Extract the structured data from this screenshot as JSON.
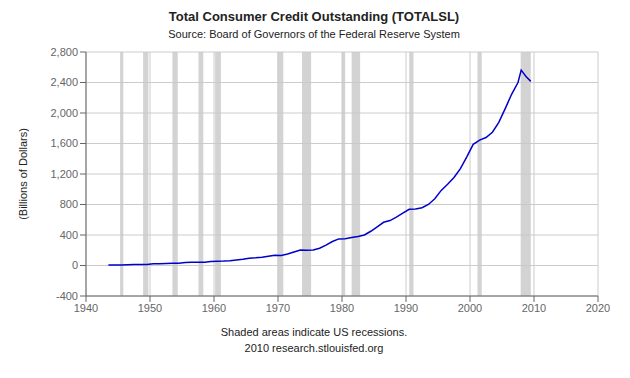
{
  "chart_data": {
    "type": "line",
    "title": "Total Consumer Credit Outstanding (TOTALSL)",
    "subtitle": "Source: Board of Governors of the Federal Reserve System",
    "y_label": "(Billions of Dollars)",
    "annotations": [
      "Shaded areas indicate US recessions.",
      "2010 research.stlouisfed.org"
    ],
    "x": [
      1943.5,
      1944.5,
      1945.5,
      1946.5,
      1947.5,
      1948.5,
      1949.5,
      1950.5,
      1951.5,
      1952.5,
      1953.5,
      1954.5,
      1955.5,
      1956.5,
      1957.5,
      1958.5,
      1959.5,
      1960.5,
      1961.5,
      1962.5,
      1963.5,
      1964.5,
      1965.5,
      1966.5,
      1967.5,
      1968.5,
      1969.5,
      1970.5,
      1971.5,
      1972.5,
      1973.5,
      1974.5,
      1975.5,
      1976.5,
      1977.5,
      1978.5,
      1979.5,
      1980.5,
      1981.5,
      1982.5,
      1983.5,
      1984.5,
      1985.5,
      1986.5,
      1987.5,
      1988.5,
      1989.5,
      1990.5,
      1991.5,
      1992.5,
      1993.5,
      1994.5,
      1995.5,
      1996.5,
      1997.5,
      1998.5,
      1999.5,
      2000.5,
      2001.5,
      2002.5,
      2003.5,
      2004.5,
      2005.5,
      2006.5,
      2007.5,
      2008.0,
      2008.75,
      2009.5
    ],
    "values": [
      5.6,
      5.0,
      5.7,
      8.4,
      11.6,
      14.3,
      13.9,
      21.5,
      22.5,
      27.5,
      31.0,
      29.5,
      38.8,
      42.0,
      44.0,
      42.0,
      51.5,
      56.0,
      57.5,
      63.0,
      73.0,
      83.0,
      96.5,
      101.0,
      107.5,
      122.0,
      135.5,
      131.5,
      150.0,
      176.0,
      202.0,
      199.0,
      204.0,
      226.0,
      267.0,
      315.0,
      349.0,
      350.0,
      366.0,
      381.0,
      400.0,
      449.0,
      507.0,
      567.0,
      589.0,
      634.0,
      686.0,
      737.0,
      741.0,
      757.0,
      800.0,
      875.0,
      985.0,
      1066.0,
      1154.0,
      1270.0,
      1425.0,
      1589.0,
      1644.0,
      1678.0,
      1748.0,
      1878.0,
      2057.0,
      2245.0,
      2400.0,
      2562.0,
      2480.0,
      2415.0
    ],
    "color": "#0000cc",
    "recessions": {
      "color": "#c8c8c8",
      "ranges": [
        [
          1945.33,
          1945.83
        ],
        [
          1948.92,
          1949.75
        ],
        [
          1953.5,
          1954.33
        ],
        [
          1957.58,
          1958.33
        ],
        [
          1960.17,
          1961.08
        ],
        [
          1969.92,
          1970.83
        ],
        [
          1973.75,
          1975.17
        ],
        [
          1980.0,
          1980.5
        ],
        [
          1981.5,
          1982.83
        ],
        [
          1990.5,
          1991.17
        ],
        [
          2001.17,
          2001.83
        ],
        [
          2007.92,
          2009.5
        ]
      ]
    },
    "xlim": [
      1940,
      2020
    ],
    "xticks": [
      1940,
      1950,
      1960,
      1970,
      1980,
      1990,
      2000,
      2010,
      2020
    ],
    "ylim": [
      -400,
      2800
    ],
    "yticks": [
      -400,
      0,
      400,
      800,
      {
        "value": 1200,
        "label": "1,200"
      },
      {
        "value": 1600,
        "label": "1,600"
      },
      {
        "value": 2000,
        "label": "2,000"
      },
      {
        "value": 2400,
        "label": "2,400"
      },
      {
        "value": 2800,
        "label": "2,800"
      }
    ],
    "grid": true
  }
}
